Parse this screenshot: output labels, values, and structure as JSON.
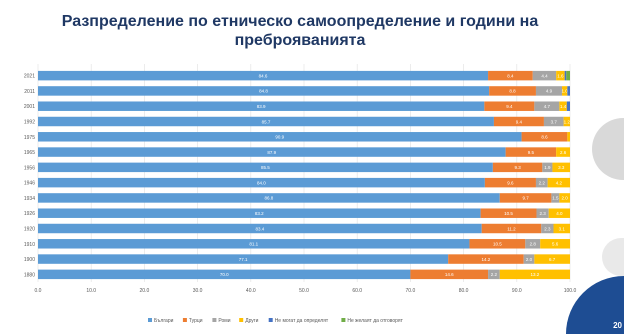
{
  "page": {
    "title_line1": "Разпределение по етническо самоопределение и години на",
    "title_line2": "преброяванията",
    "corner_text": "20"
  },
  "chart_data": {
    "type": "bar",
    "orientation": "horizontal",
    "stacked": true,
    "title": "Разпределение по етническо самоопределение и години на преброяванията",
    "categories": [
      "2021",
      "2011",
      "2001",
      "1992",
      "1975",
      "1965",
      "1956",
      "1946",
      "1934",
      "1926",
      "1920",
      "1910",
      "1900",
      "1880"
    ],
    "xlim": [
      0,
      100
    ],
    "xticks": [
      "0.0",
      "10.0",
      "20.0",
      "30.0",
      "40.0",
      "50.0",
      "60.0",
      "70.0",
      "80.0",
      "90.0",
      "100.0"
    ],
    "grid": true,
    "legend_position": "bottom",
    "series": [
      {
        "name": "Българи",
        "color": "#5b9bd5",
        "values": [
          84.6,
          84.8,
          83.9,
          85.7,
          90.9,
          87.9,
          85.5,
          84.0,
          86.8,
          83.2,
          83.4,
          81.1,
          77.1,
          70.0
        ]
      },
      {
        "name": "Турци",
        "color": "#ed7d31",
        "values": [
          8.4,
          8.8,
          9.4,
          9.4,
          8.6,
          9.5,
          9.3,
          9.6,
          9.7,
          10.5,
          11.2,
          10.5,
          14.2,
          14.6
        ]
      },
      {
        "name": "Роми",
        "color": "#a5a5a5",
        "values": [
          4.4,
          4.9,
          4.7,
          3.7,
          0.0,
          0.0,
          1.9,
          2.2,
          1.5,
          2.3,
          2.3,
          2.8,
          2.0,
          2.2
        ]
      },
      {
        "name": "Други",
        "color": "#ffc000",
        "values": [
          1.6,
          1.0,
          1.4,
          1.2,
          0.5,
          2.6,
          3.3,
          4.2,
          2.0,
          4.0,
          3.1,
          5.6,
          6.7,
          13.2
        ]
      },
      {
        "name": "Не могат да определят",
        "color": "#4472c4",
        "values": [
          0.3,
          0.5,
          0.6,
          0,
          0,
          0,
          0,
          0,
          0,
          0,
          0,
          0,
          0,
          0
        ]
      },
      {
        "name": "Не желаят да отговорят",
        "color": "#70ad47",
        "values": [
          0.7,
          0,
          0,
          0,
          0,
          0,
          0,
          0,
          0,
          0,
          0,
          0,
          0,
          0
        ]
      }
    ]
  }
}
